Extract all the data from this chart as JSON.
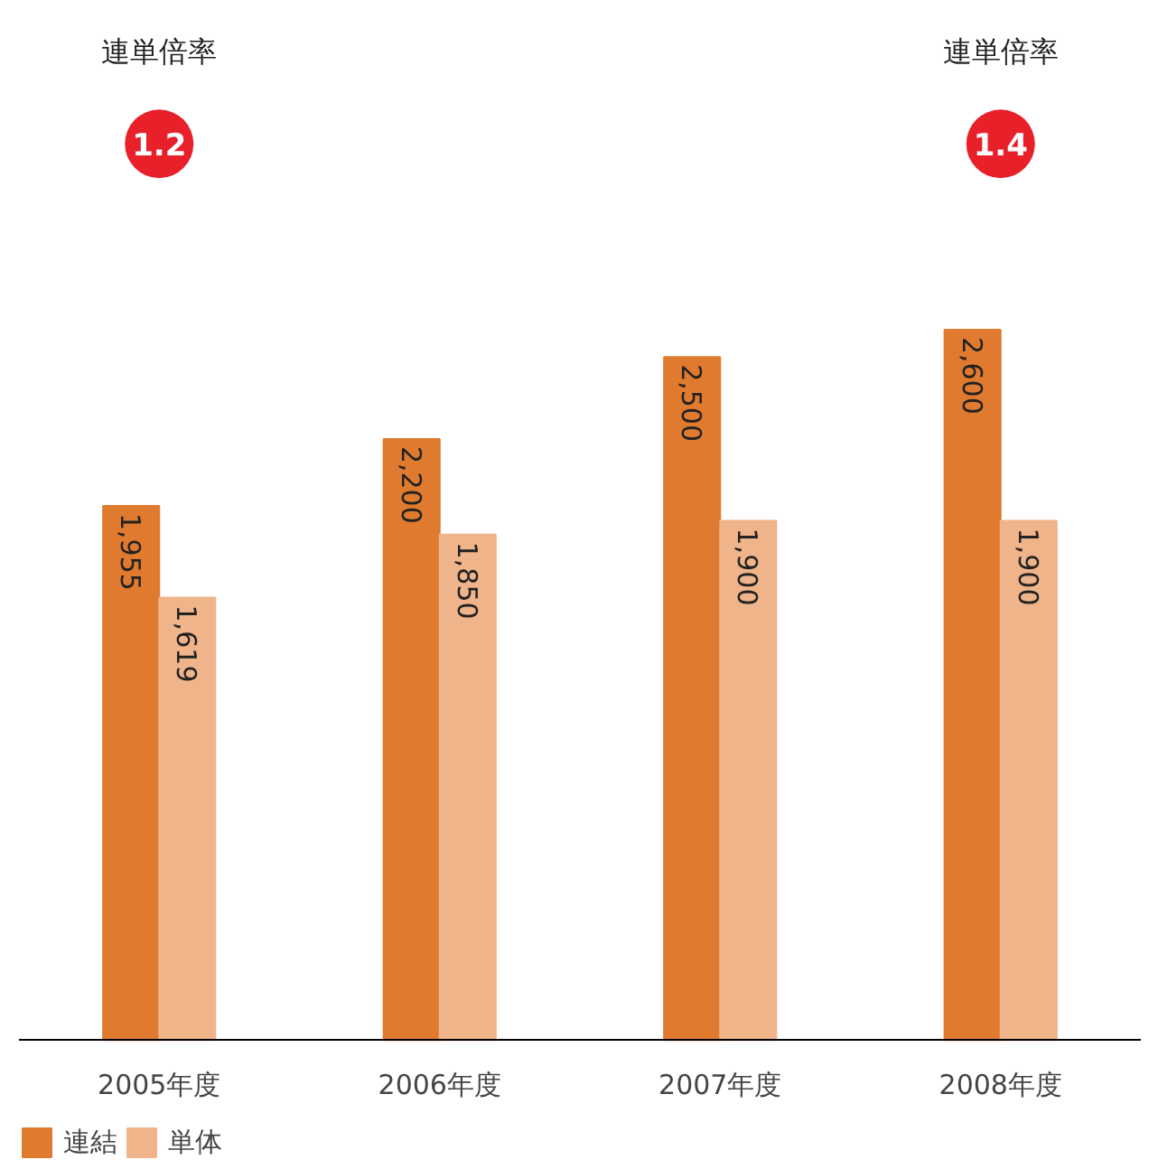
{
  "chart_data": {
    "type": "bar",
    "categories": [
      "2005年度",
      "2006年度",
      "2007年度",
      "2008年度"
    ],
    "series": [
      {
        "name": "連結",
        "color": "#e07a2e",
        "values": [
          1955,
          2200,
          2500,
          2600
        ],
        "value_labels": [
          "1,955",
          "2,200",
          "2,500",
          "2,600"
        ]
      },
      {
        "name": "単体",
        "color": "#f0b48a",
        "values": [
          1619,
          1850,
          1900,
          1900
        ],
        "value_labels": [
          "1,619",
          "1,850",
          "1,900",
          "1,900"
        ]
      }
    ],
    "data_labels": true,
    "grid": false,
    "legend": "bottom left",
    "tick_labels": "x",
    "annotations": [
      "連単倍率",
      "1.2",
      "連単倍率",
      "1.4"
    ]
  }
}
